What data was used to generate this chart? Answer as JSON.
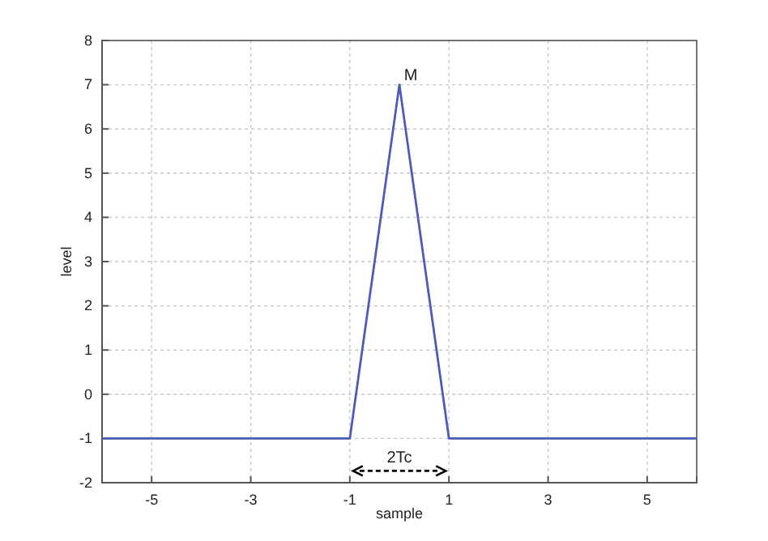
{
  "chart_data": {
    "type": "line",
    "xlabel": "sample",
    "ylabel": "level",
    "x": [
      -6,
      -1,
      0,
      1,
      6
    ],
    "series": [
      {
        "color": "#4b5cb8",
        "values": [
          -1,
          -1,
          7,
          -1,
          -1
        ]
      }
    ],
    "xlim": [
      -6,
      6
    ],
    "xticks": [
      -5,
      -3,
      -1,
      1,
      3,
      5
    ],
    "ylim": [
      -2,
      8
    ],
    "yticks": [
      -2,
      -1,
      0,
      1,
      2,
      3,
      4,
      5,
      6,
      7,
      8
    ],
    "grid": true,
    "marker": "none",
    "line_style": "solid",
    "annotations": [
      {
        "text": "M",
        "x": 0,
        "y": 7
      },
      "2Tc"
    ]
  }
}
